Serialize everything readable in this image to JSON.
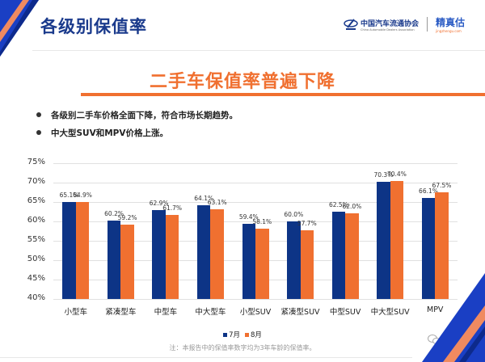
{
  "header": {
    "title": "各级别保值率",
    "logos": {
      "cada_cn": "中国汽车流通协会",
      "cada_en": "China Automobile Dealers Association",
      "jzg_cn": "精真估",
      "jzg_en": "jingzhengu.com"
    }
  },
  "subtitle": "二手车保值率普遍下降",
  "bullets": [
    "各级别二手车价格全面下降，符合市场长期趋势。",
    "中大型SUV和MPV价格上涨。"
  ],
  "colors": {
    "series_july": "#0d3486",
    "series_august": "#f07030",
    "title_blue": "#1a3a8c",
    "accent_orange": "#f07030"
  },
  "legend": {
    "july": "7月",
    "august": "8月"
  },
  "note": "注：本报告中的保值率数字均为3年车龄的保值率。",
  "watermark_account": "精真估",
  "chart_data": {
    "type": "bar",
    "title": "二手车保值率普遍下降",
    "xlabel": "",
    "ylabel": "",
    "categories": [
      "小型车",
      "紧凑型车",
      "中型车",
      "中大型车",
      "小型SUV",
      "紧凑型SUV",
      "中型SUV",
      "中大型SUV",
      "MPV"
    ],
    "series": [
      {
        "name": "7月",
        "values": [
          65.1,
          60.2,
          62.9,
          64.1,
          59.4,
          60.0,
          62.5,
          70.3,
          66.1
        ],
        "labels": [
          "65.1%",
          "60.2%",
          "62.9%",
          "64.1%",
          "59.4%",
          "60.0%",
          "62.5%",
          "70.3%",
          "66.1%"
        ]
      },
      {
        "name": "8月",
        "values": [
          64.9,
          59.2,
          61.7,
          63.1,
          58.1,
          57.7,
          62.0,
          70.4,
          67.5
        ],
        "labels": [
          "64.9%",
          "59.2%",
          "61.7%",
          "63.1%",
          "58.1%",
          "57.7%",
          "62.0%",
          "70.4%",
          "67.5%"
        ]
      }
    ],
    "yticks": [
      "75%",
      "70%",
      "65%",
      "60%",
      "55%",
      "50%",
      "45%",
      "40%"
    ],
    "ylim": [
      40,
      75
    ],
    "grid": true,
    "legend_position": "bottom"
  }
}
